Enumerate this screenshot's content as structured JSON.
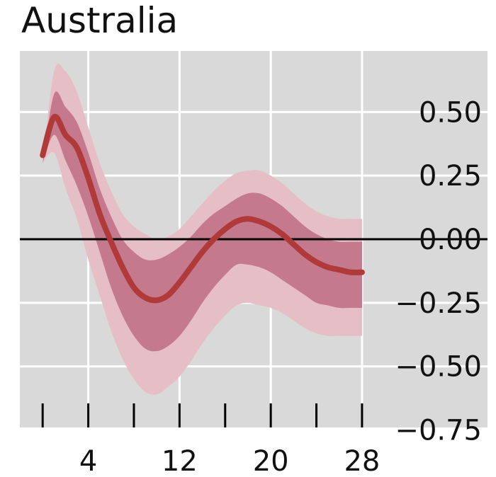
{
  "chart_data": {
    "type": "line",
    "title": "Australia",
    "xlabel": "",
    "ylabel": "",
    "x_ticks": [
      4,
      12,
      20,
      28
    ],
    "x_minor_ticks": [
      0,
      4,
      8,
      12,
      16,
      20,
      24,
      28
    ],
    "y_ticks": [
      0.5,
      0.25,
      0.0,
      -0.25,
      -0.5,
      -0.75
    ],
    "y_tick_labels": [
      "0.50",
      "0.25",
      "0.00",
      "−0.25",
      "−0.50",
      "−0.75"
    ],
    "xlim": [
      -2,
      39
    ],
    "ylim": [
      -0.74,
      0.74
    ],
    "y_axis_position": "right",
    "grid": true,
    "zero_line": true,
    "colors": {
      "background": "#d9d9d9",
      "grid": "#ffffff",
      "line": "#b03a3a",
      "band_inner": "#c47a8c",
      "band_outer": "#e6bfc6",
      "zero_line": "#000000"
    },
    "x": [
      0,
      1,
      2,
      3,
      4,
      5,
      6,
      7,
      8,
      9,
      10,
      11,
      12,
      13,
      14,
      15,
      16,
      17,
      18,
      19,
      20,
      21,
      22,
      23,
      24,
      25,
      26,
      27,
      28
    ],
    "series": [
      {
        "values": [
          0.33,
          0.48,
          0.41,
          0.36,
          0.24,
          0.1,
          -0.01,
          -0.11,
          -0.19,
          -0.23,
          -0.24,
          -0.22,
          -0.17,
          -0.11,
          -0.05,
          0.0,
          0.04,
          0.07,
          0.08,
          0.07,
          0.05,
          0.02,
          -0.02,
          -0.06,
          -0.09,
          -0.11,
          -0.12,
          -0.13,
          -0.13
        ]
      }
    ],
    "bands": [
      {
        "level": "outer",
        "upper": [
          0.3,
          0.66,
          0.66,
          0.58,
          0.44,
          0.3,
          0.19,
          0.1,
          0.05,
          0.02,
          0.0,
          0.01,
          0.04,
          0.09,
          0.14,
          0.19,
          0.23,
          0.26,
          0.27,
          0.27,
          0.25,
          0.22,
          0.18,
          0.14,
          0.11,
          0.09,
          0.08,
          0.08,
          0.08
        ],
        "lower": [
          0.3,
          0.34,
          0.2,
          0.08,
          -0.08,
          -0.22,
          -0.36,
          -0.47,
          -0.55,
          -0.6,
          -0.61,
          -0.58,
          -0.54,
          -0.48,
          -0.41,
          -0.35,
          -0.3,
          -0.26,
          -0.25,
          -0.26,
          -0.27,
          -0.29,
          -0.32,
          -0.35,
          -0.37,
          -0.38,
          -0.38,
          -0.38,
          -0.38
        ]
      },
      {
        "level": "inner",
        "upper": [
          0.3,
          0.57,
          0.52,
          0.46,
          0.34,
          0.2,
          0.09,
          0.0,
          -0.05,
          -0.08,
          -0.08,
          -0.06,
          -0.03,
          0.01,
          0.06,
          0.1,
          0.13,
          0.16,
          0.18,
          0.18,
          0.16,
          0.13,
          0.09,
          0.05,
          0.02,
          0.0,
          -0.01,
          -0.01,
          -0.01
        ],
        "lower": [
          0.3,
          0.41,
          0.31,
          0.21,
          0.09,
          -0.05,
          -0.19,
          -0.3,
          -0.38,
          -0.43,
          -0.44,
          -0.42,
          -0.38,
          -0.32,
          -0.25,
          -0.19,
          -0.14,
          -0.1,
          -0.1,
          -0.11,
          -0.13,
          -0.16,
          -0.19,
          -0.22,
          -0.25,
          -0.26,
          -0.27,
          -0.27,
          -0.27
        ]
      }
    ]
  }
}
